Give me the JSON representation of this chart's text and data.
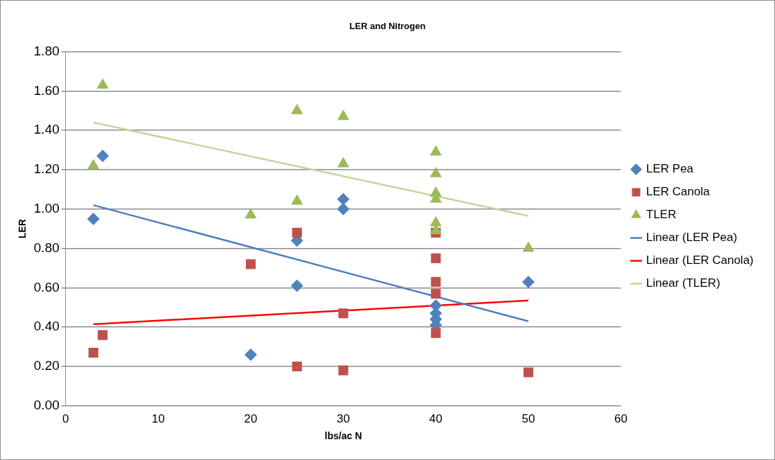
{
  "chart_data": {
    "type": "scatter",
    "title": "LER and Nitrogen",
    "xlabel": "lbs/ac N",
    "ylabel": "LER",
    "xlim": [
      0,
      60
    ],
    "xticks": [
      0,
      10,
      20,
      30,
      40,
      50,
      60
    ],
    "ylim": [
      0,
      1.8
    ],
    "yticks": [
      {
        "value": 0,
        "label": "0.00"
      },
      {
        "value": 0.2,
        "label": "0.20"
      },
      {
        "value": 0.4,
        "label": "0.40"
      },
      {
        "value": 0.6,
        "label": "0.60"
      },
      {
        "value": 0.8,
        "label": "0.80"
      },
      {
        "value": 1.0,
        "label": "1.00"
      },
      {
        "value": 1.2,
        "label": "1.20"
      },
      {
        "value": 1.4,
        "label": "1.40"
      },
      {
        "value": 1.6,
        "label": "1.60"
      },
      {
        "value": 1.8,
        "label": "1.80"
      }
    ],
    "grid": "y",
    "legend": "right",
    "series": [
      {
        "name": "LER Pea",
        "color": "#4f81bd",
        "marker": "diamond",
        "x": [
          3,
          4,
          20,
          25,
          25,
          30,
          30,
          40,
          40,
          40,
          40,
          50
        ],
        "values": [
          0.95,
          1.27,
          0.26,
          0.84,
          0.61,
          1.05,
          1.0,
          0.51,
          0.47,
          0.44,
          0.41,
          0.63
        ]
      },
      {
        "name": "LER Canola",
        "color": "#c0504d",
        "marker": "square",
        "x": [
          3,
          4,
          20,
          25,
          25,
          30,
          30,
          40,
          40,
          40,
          40,
          40,
          50
        ],
        "values": [
          0.27,
          0.36,
          0.72,
          0.88,
          0.2,
          0.47,
          0.18,
          0.88,
          0.75,
          0.63,
          0.57,
          0.37,
          0.17
        ]
      },
      {
        "name": "TLER",
        "color": "#9bbb59",
        "marker": "triangle",
        "x": [
          3,
          4,
          20,
          25,
          25,
          30,
          30,
          40,
          40,
          40,
          40,
          40,
          40,
          50
        ],
        "values": [
          1.22,
          1.63,
          0.97,
          1.5,
          1.04,
          1.47,
          1.23,
          1.29,
          1.18,
          1.08,
          1.05,
          0.93,
          0.89,
          0.8
        ]
      },
      {
        "name": "Linear (LER Pea)",
        "type": "line",
        "color": "#4a7ebb",
        "marker": "none",
        "x": [
          3,
          50
        ],
        "values": [
          1.02,
          0.43
        ]
      },
      {
        "name": "Linear (LER Canola)",
        "type": "line",
        "color": "#ff0000",
        "marker": "none",
        "x": [
          3,
          50
        ],
        "values": [
          0.415,
          0.535
        ]
      },
      {
        "name": "Linear (TLER)",
        "type": "line",
        "color": "#c3d69b",
        "marker": "none",
        "x": [
          3,
          50
        ],
        "values": [
          1.44,
          0.965
        ]
      }
    ]
  }
}
